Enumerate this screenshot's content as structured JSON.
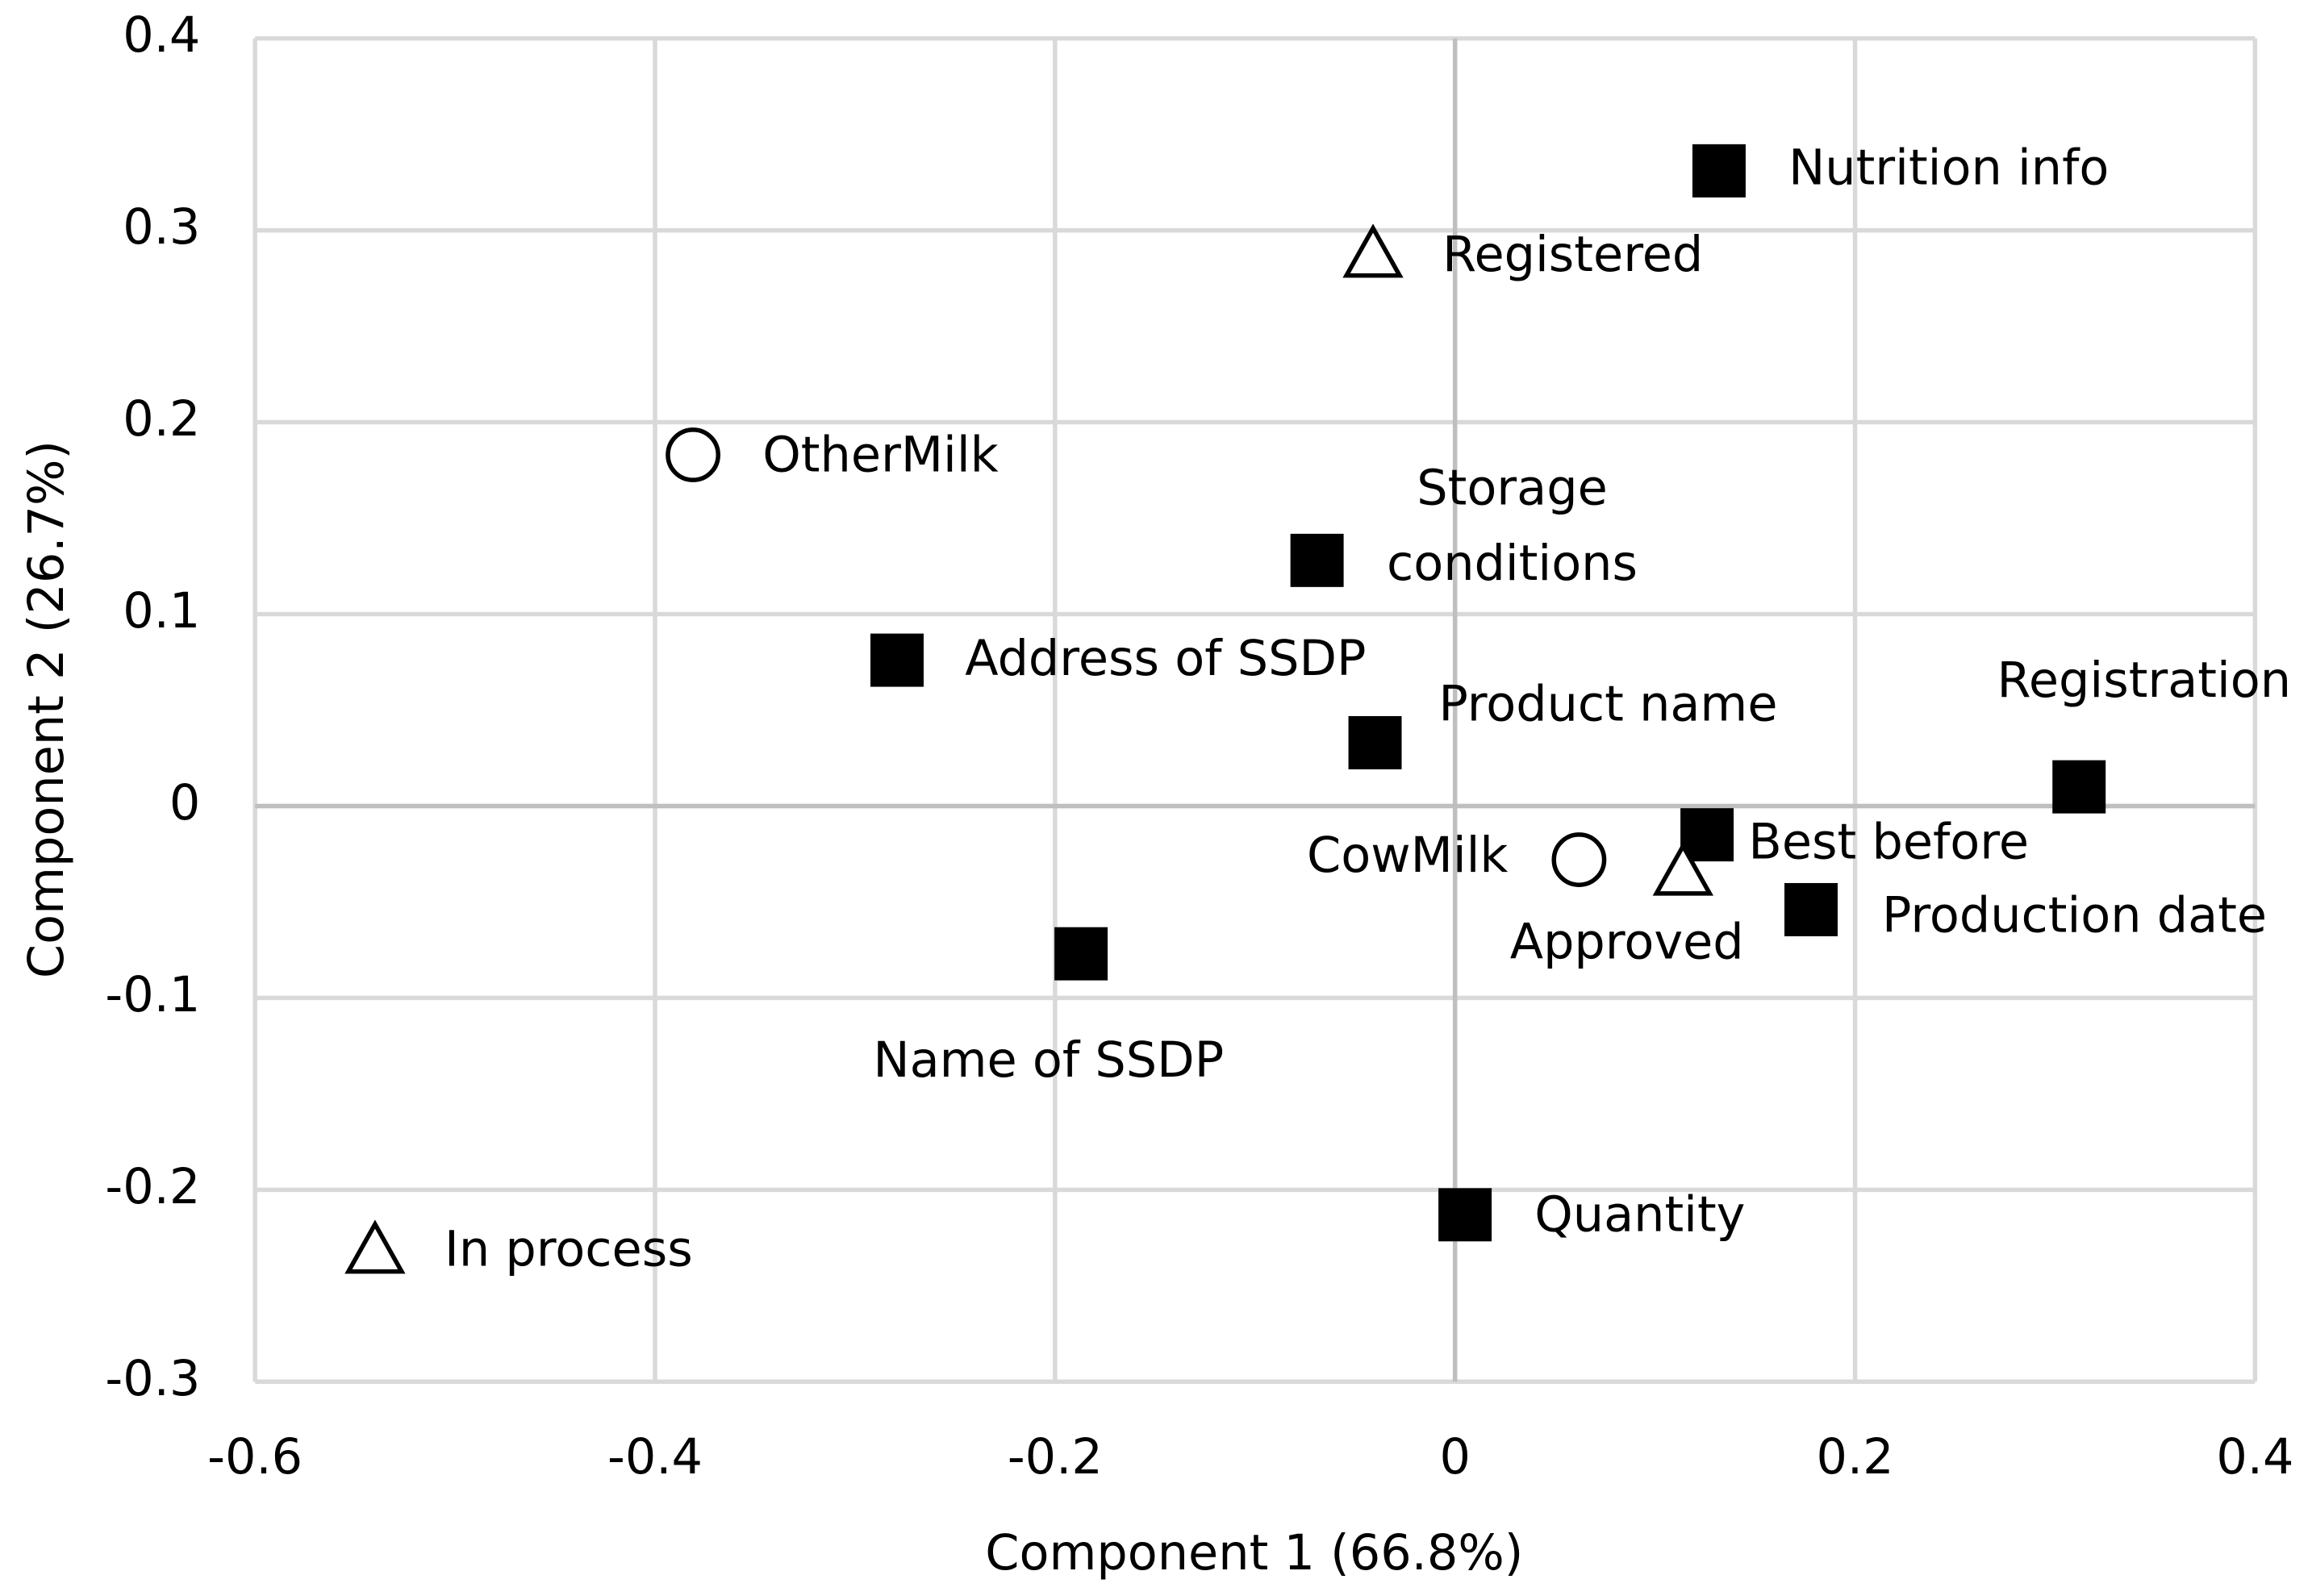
{
  "chart_data": {
    "type": "scatter",
    "x_label": "Component 1 (66.8%)",
    "y_label": "Component 2 (26.7%)",
    "xlim": [
      -0.6,
      0.4
    ],
    "xticks": [
      -0.6,
      -0.4,
      -0.2,
      0,
      0.2,
      0.4
    ],
    "ylim": [
      -0.3,
      0.4
    ],
    "yticks": [
      -0.3,
      -0.2,
      -0.1,
      0,
      0.1,
      0.2,
      0.3,
      0.4
    ],
    "grid": true,
    "points": [
      {
        "label": "Nutrition info",
        "x": 0.132,
        "y": 0.331,
        "marker": "square"
      },
      {
        "label": "Registered",
        "x": -0.041,
        "y": 0.288,
        "marker": "triangle"
      },
      {
        "label": "OtherMilk",
        "x": -0.381,
        "y": 0.183,
        "marker": "circle"
      },
      {
        "label": [
          "Storage",
          "conditions"
        ],
        "x": -0.069,
        "y": 0.128,
        "marker": "square"
      },
      {
        "label": "Address of SSDP",
        "x": -0.279,
        "y": 0.076,
        "marker": "square"
      },
      {
        "label": "Product name",
        "x": -0.04,
        "y": 0.033,
        "marker": "square"
      },
      {
        "label": "Registration",
        "x": 0.312,
        "y": 0.01,
        "marker": "square"
      },
      {
        "label": "Best before",
        "x": 0.126,
        "y": -0.015,
        "marker": "square"
      },
      {
        "label": "CowMilk",
        "x": 0.062,
        "y": -0.028,
        "marker": "circle"
      },
      {
        "label": "Approved",
        "x": 0.114,
        "y": -0.034,
        "marker": "triangle"
      },
      {
        "label": "Production date",
        "x": 0.178,
        "y": -0.054,
        "marker": "square"
      },
      {
        "label": "Name of SSDP",
        "x": -0.187,
        "y": -0.077,
        "marker": "square"
      },
      {
        "label": "Quantity",
        "x": 0.005,
        "y": -0.213,
        "marker": "square"
      },
      {
        "label": "In process",
        "x": -0.54,
        "y": -0.231,
        "marker": "triangle"
      }
    ]
  }
}
